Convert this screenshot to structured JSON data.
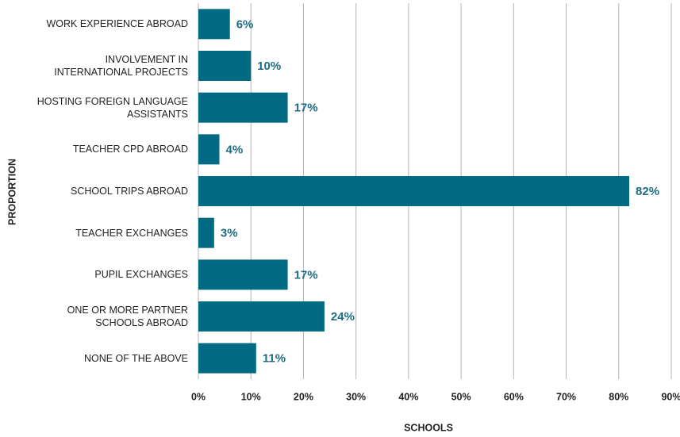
{
  "chart_data": {
    "type": "bar",
    "orientation": "horizontal",
    "x_label": "SCHOOLS",
    "y_label": "PROPORTION",
    "categories": [
      "WORK EXPERIENCE ABROAD",
      "INVOLVEMENT IN INTERNATIONAL PROJECTS",
      "HOSTING FOREIGN LANGUAGE ASSISTANTS",
      "TEACHER CPD ABROAD",
      "SCHOOL TRIPS ABROAD",
      "TEACHER EXCHANGES",
      "PUPIL EXCHANGES",
      "ONE OR MORE PARTNER SCHOOLS ABROAD",
      "NONE OF THE ABOVE"
    ],
    "values": [
      6,
      10,
      17,
      4,
      82,
      3,
      17,
      24,
      11
    ],
    "value_labels": [
      "6%",
      "10%",
      "17%",
      "4%",
      "82%",
      "3%",
      "17%",
      "24%",
      "11%"
    ],
    "color": "#006b82",
    "xlim": [
      0,
      90
    ],
    "xticks": [
      {
        "value": 0,
        "label": "0%"
      },
      {
        "value": 10,
        "label": "10%"
      },
      {
        "value": 20,
        "label": "20%"
      },
      {
        "value": 30,
        "label": "30%"
      },
      {
        "value": 40,
        "label": "40%"
      },
      {
        "value": 50,
        "label": "50%"
      },
      {
        "value": 60,
        "label": "60%"
      },
      {
        "value": 70,
        "label": "70%"
      },
      {
        "value": 80,
        "label": "80%"
      },
      {
        "value": 90,
        "label": "90%"
      }
    ],
    "grid": true
  }
}
